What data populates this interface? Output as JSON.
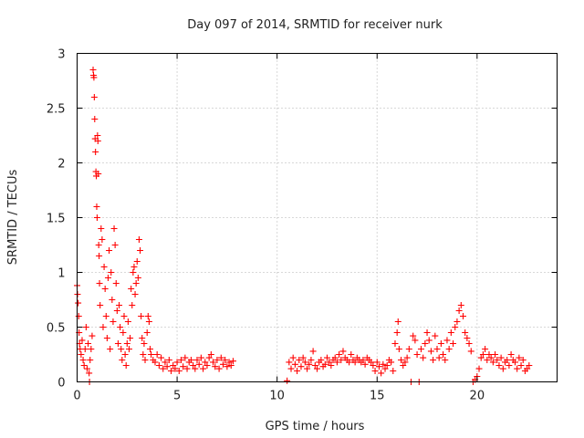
{
  "chart_data": {
    "type": "scatter",
    "title": "Day 097 of 2014, SRMTID for receiver nurk",
    "xlabel": "GPS time / hours",
    "ylabel": "SRMTID / TECUs",
    "xlim": [
      0,
      24
    ],
    "ylim": [
      0,
      3
    ],
    "xticks": [
      0,
      5,
      10,
      15,
      20
    ],
    "xtick_labels": [
      "0",
      "5",
      "10",
      "15",
      "20"
    ],
    "yticks": [
      0,
      0.5,
      1,
      1.5,
      2,
      2.5,
      3
    ],
    "ytick_labels": [
      "0",
      "0.5",
      "1",
      "1.5",
      "2",
      "2.5",
      "3"
    ],
    "grid": true,
    "legend": "none",
    "marker": "+",
    "series": [
      {
        "name": "SRMTID",
        "color": "#ff0000",
        "points": [
          [
            0.0,
            0.88
          ],
          [
            0.02,
            0.8
          ],
          [
            0.05,
            0.72
          ],
          [
            0.08,
            0.6
          ],
          [
            0.1,
            0.45
          ],
          [
            0.12,
            0.35
          ],
          [
            0.15,
            0.3
          ],
          [
            0.2,
            0.25
          ],
          [
            0.25,
            0.38
          ],
          [
            0.3,
            0.2
          ],
          [
            0.35,
            0.15
          ],
          [
            0.4,
            0.3
          ],
          [
            0.45,
            0.5
          ],
          [
            0.5,
            0.12
          ],
          [
            0.55,
            0.35
          ],
          [
            0.6,
            0.08
          ],
          [
            0.62,
            0.0
          ],
          [
            0.65,
            0.2
          ],
          [
            0.7,
            0.3
          ],
          [
            0.75,
            0.42
          ],
          [
            0.8,
            2.85
          ],
          [
            0.82,
            2.8
          ],
          [
            0.84,
            2.78
          ],
          [
            0.86,
            2.6
          ],
          [
            0.88,
            2.4
          ],
          [
            0.9,
            2.22
          ],
          [
            0.92,
            2.1
          ],
          [
            0.94,
            1.92
          ],
          [
            0.96,
            1.88
          ],
          [
            0.98,
            1.6
          ],
          [
            1.0,
            1.5
          ],
          [
            1.02,
            2.25
          ],
          [
            1.04,
            2.2
          ],
          [
            1.06,
            1.9
          ],
          [
            1.08,
            1.25
          ],
          [
            1.1,
            1.15
          ],
          [
            1.12,
            0.9
          ],
          [
            1.15,
            0.7
          ],
          [
            1.2,
            1.4
          ],
          [
            1.25,
            1.3
          ],
          [
            1.3,
            0.5
          ],
          [
            1.35,
            1.05
          ],
          [
            1.4,
            0.85
          ],
          [
            1.45,
            0.6
          ],
          [
            1.5,
            0.4
          ],
          [
            1.55,
            0.95
          ],
          [
            1.6,
            1.2
          ],
          [
            1.65,
            0.3
          ],
          [
            1.7,
            1.0
          ],
          [
            1.75,
            0.75
          ],
          [
            1.8,
            0.55
          ],
          [
            1.85,
            1.4
          ],
          [
            1.9,
            1.25
          ],
          [
            1.95,
            0.9
          ],
          [
            2.0,
            0.65
          ],
          [
            2.05,
            0.35
          ],
          [
            2.1,
            0.7
          ],
          [
            2.15,
            0.5
          ],
          [
            2.2,
            0.3
          ],
          [
            2.25,
            0.2
          ],
          [
            2.3,
            0.45
          ],
          [
            2.35,
            0.6
          ],
          [
            2.4,
            0.25
          ],
          [
            2.45,
            0.15
          ],
          [
            2.5,
            0.35
          ],
          [
            2.55,
            0.55
          ],
          [
            2.6,
            0.3
          ],
          [
            2.65,
            0.4
          ],
          [
            2.7,
            0.85
          ],
          [
            2.75,
            0.7
          ],
          [
            2.8,
            1.0
          ],
          [
            2.85,
            1.05
          ],
          [
            2.9,
            0.8
          ],
          [
            2.95,
            0.9
          ],
          [
            3.0,
            1.1
          ],
          [
            3.05,
            0.95
          ],
          [
            3.1,
            1.3
          ],
          [
            3.15,
            1.2
          ],
          [
            3.2,
            0.6
          ],
          [
            3.25,
            0.4
          ],
          [
            3.3,
            0.25
          ],
          [
            3.35,
            0.35
          ],
          [
            3.4,
            0.2
          ],
          [
            3.5,
            0.45
          ],
          [
            3.55,
            0.6
          ],
          [
            3.6,
            0.55
          ],
          [
            3.65,
            0.3
          ],
          [
            3.7,
            0.25
          ],
          [
            3.8,
            0.2
          ],
          [
            3.9,
            0.18
          ],
          [
            4.0,
            0.25
          ],
          [
            4.1,
            0.15
          ],
          [
            4.2,
            0.22
          ],
          [
            4.3,
            0.12
          ],
          [
            4.4,
            0.18
          ],
          [
            4.5,
            0.14
          ],
          [
            4.6,
            0.2
          ],
          [
            4.7,
            0.1
          ],
          [
            4.8,
            0.15
          ],
          [
            4.9,
            0.12
          ],
          [
            5.0,
            0.18
          ],
          [
            5.1,
            0.1
          ],
          [
            5.2,
            0.2
          ],
          [
            5.3,
            0.14
          ],
          [
            5.4,
            0.22
          ],
          [
            5.5,
            0.12
          ],
          [
            5.6,
            0.18
          ],
          [
            5.7,
            0.2
          ],
          [
            5.8,
            0.15
          ],
          [
            5.9,
            0.12
          ],
          [
            6.0,
            0.2
          ],
          [
            6.1,
            0.16
          ],
          [
            6.2,
            0.22
          ],
          [
            6.3,
            0.12
          ],
          [
            6.4,
            0.18
          ],
          [
            6.5,
            0.15
          ],
          [
            6.6,
            0.22
          ],
          [
            6.7,
            0.25
          ],
          [
            6.8,
            0.18
          ],
          [
            6.9,
            0.14
          ],
          [
            7.0,
            0.2
          ],
          [
            7.1,
            0.12
          ],
          [
            7.2,
            0.22
          ],
          [
            7.3,
            0.16
          ],
          [
            7.4,
            0.2
          ],
          [
            7.5,
            0.14
          ],
          [
            7.6,
            0.18
          ],
          [
            7.7,
            0.15
          ],
          [
            7.8,
            0.19
          ],
          [
            10.5,
            0.01
          ],
          [
            10.6,
            0.18
          ],
          [
            10.7,
            0.12
          ],
          [
            10.8,
            0.22
          ],
          [
            10.9,
            0.16
          ],
          [
            11.0,
            0.1
          ],
          [
            11.1,
            0.2
          ],
          [
            11.2,
            0.14
          ],
          [
            11.3,
            0.22
          ],
          [
            11.4,
            0.18
          ],
          [
            11.5,
            0.12
          ],
          [
            11.6,
            0.16
          ],
          [
            11.7,
            0.2
          ],
          [
            11.8,
            0.28
          ],
          [
            11.9,
            0.15
          ],
          [
            12.0,
            0.12
          ],
          [
            12.1,
            0.18
          ],
          [
            12.2,
            0.2
          ],
          [
            12.3,
            0.14
          ],
          [
            12.4,
            0.16
          ],
          [
            12.5,
            0.22
          ],
          [
            12.6,
            0.18
          ],
          [
            12.7,
            0.15
          ],
          [
            12.8,
            0.2
          ],
          [
            12.9,
            0.22
          ],
          [
            13.0,
            0.18
          ],
          [
            13.1,
            0.25
          ],
          [
            13.2,
            0.2
          ],
          [
            13.3,
            0.28
          ],
          [
            13.4,
            0.22
          ],
          [
            13.5,
            0.2
          ],
          [
            13.6,
            0.18
          ],
          [
            13.7,
            0.25
          ],
          [
            13.8,
            0.2
          ],
          [
            13.9,
            0.18
          ],
          [
            14.0,
            0.22
          ],
          [
            14.1,
            0.2
          ],
          [
            14.2,
            0.18
          ],
          [
            14.3,
            0.2
          ],
          [
            14.4,
            0.16
          ],
          [
            14.5,
            0.22
          ],
          [
            14.6,
            0.2
          ],
          [
            14.7,
            0.18
          ],
          [
            14.8,
            0.15
          ],
          [
            14.9,
            0.1
          ],
          [
            15.0,
            0.18
          ],
          [
            15.1,
            0.14
          ],
          [
            15.2,
            0.08
          ],
          [
            15.3,
            0.16
          ],
          [
            15.4,
            0.12
          ],
          [
            15.5,
            0.15
          ],
          [
            15.6,
            0.2
          ],
          [
            15.7,
            0.18
          ],
          [
            15.8,
            0.1
          ],
          [
            15.9,
            0.35
          ],
          [
            16.0,
            0.45
          ],
          [
            16.05,
            0.55
          ],
          [
            16.1,
            0.3
          ],
          [
            16.2,
            0.2
          ],
          [
            16.3,
            0.15
          ],
          [
            16.4,
            0.18
          ],
          [
            16.5,
            0.22
          ],
          [
            16.6,
            0.3
          ],
          [
            16.7,
            0.0
          ],
          [
            16.8,
            0.42
          ],
          [
            16.9,
            0.38
          ],
          [
            17.0,
            0.25
          ],
          [
            17.1,
            0.0
          ],
          [
            17.2,
            0.3
          ],
          [
            17.3,
            0.22
          ],
          [
            17.4,
            0.35
          ],
          [
            17.5,
            0.45
          ],
          [
            17.6,
            0.38
          ],
          [
            17.7,
            0.28
          ],
          [
            17.8,
            0.2
          ],
          [
            17.9,
            0.42
          ],
          [
            18.0,
            0.3
          ],
          [
            18.1,
            0.22
          ],
          [
            18.2,
            0.35
          ],
          [
            18.3,
            0.25
          ],
          [
            18.4,
            0.2
          ],
          [
            18.5,
            0.38
          ],
          [
            18.6,
            0.3
          ],
          [
            18.7,
            0.45
          ],
          [
            18.8,
            0.35
          ],
          [
            18.9,
            0.5
          ],
          [
            19.0,
            0.55
          ],
          [
            19.1,
            0.65
          ],
          [
            19.2,
            0.7
          ],
          [
            19.3,
            0.6
          ],
          [
            19.4,
            0.45
          ],
          [
            19.5,
            0.4
          ],
          [
            19.6,
            0.35
          ],
          [
            19.7,
            0.28
          ],
          [
            19.8,
            0.0
          ],
          [
            19.9,
            0.02
          ],
          [
            20.0,
            0.05
          ],
          [
            20.1,
            0.12
          ],
          [
            20.2,
            0.22
          ],
          [
            20.3,
            0.25
          ],
          [
            20.4,
            0.3
          ],
          [
            20.5,
            0.2
          ],
          [
            20.6,
            0.25
          ],
          [
            20.7,
            0.22
          ],
          [
            20.8,
            0.18
          ],
          [
            20.9,
            0.25
          ],
          [
            21.0,
            0.2
          ],
          [
            21.1,
            0.15
          ],
          [
            21.2,
            0.22
          ],
          [
            21.3,
            0.12
          ],
          [
            21.4,
            0.18
          ],
          [
            21.5,
            0.2
          ],
          [
            21.6,
            0.15
          ],
          [
            21.7,
            0.25
          ],
          [
            21.8,
            0.2
          ],
          [
            21.9,
            0.18
          ],
          [
            22.0,
            0.12
          ],
          [
            22.1,
            0.22
          ],
          [
            22.2,
            0.15
          ],
          [
            22.3,
            0.2
          ],
          [
            22.4,
            0.1
          ],
          [
            22.5,
            0.12
          ],
          [
            22.6,
            0.15
          ]
        ]
      }
    ]
  }
}
